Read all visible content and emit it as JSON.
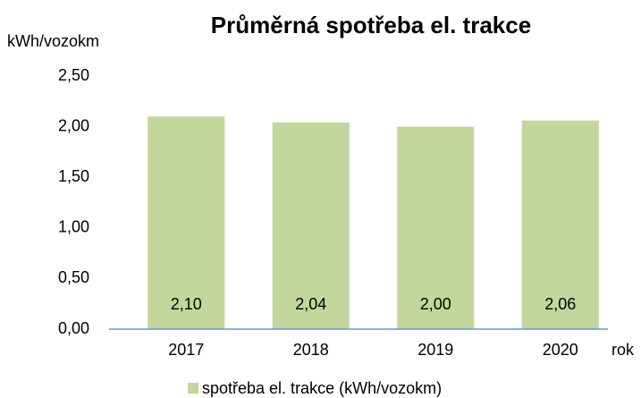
{
  "chart_data": {
    "type": "bar",
    "title": "Průměrná spotřeba el. trakce",
    "y_label": "kWh/vozokm",
    "x_label": "rok",
    "categories": [
      "2017",
      "2018",
      "2019",
      "2020"
    ],
    "series": [
      {
        "name": "spotřeba el. trakce (kWh/vozokm)",
        "color": "#c3d69b",
        "values": [
          2.1,
          2.04,
          2.0,
          2.06
        ],
        "value_labels": [
          "2,10",
          "2,04",
          "2,00",
          "2,06"
        ]
      }
    ],
    "ylim": [
      0,
      2.5
    ],
    "yticks": [
      {
        "value": 0,
        "label": "0,00"
      },
      {
        "value": 0.5,
        "label": "0,50"
      },
      {
        "value": 1,
        "label": "1,00"
      },
      {
        "value": 1.5,
        "label": "1,50"
      },
      {
        "value": 2,
        "label": "2,00"
      },
      {
        "value": 2.5,
        "label": "2,50"
      }
    ],
    "grid": false,
    "legend": "bottom"
  }
}
